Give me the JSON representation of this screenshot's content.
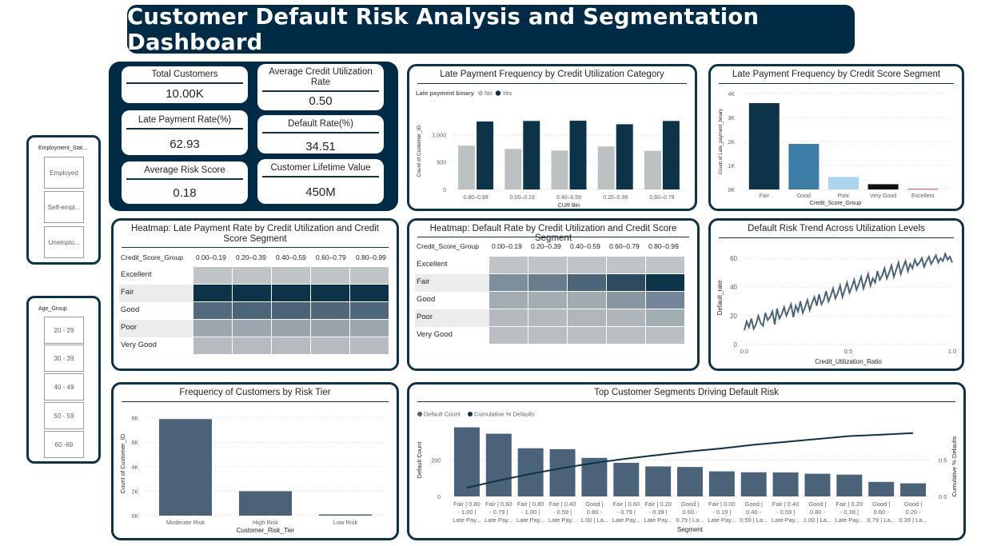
{
  "title": "Customer Default Risk Analysis and Segmentation Dashboard",
  "kpis": [
    {
      "label": "Total Customers",
      "value": "10.00K"
    },
    {
      "label": "Average Credit Utilization Rate",
      "value": "0.50"
    },
    {
      "label": "Late Payment Rate(%)",
      "value": "62.93"
    },
    {
      "label": "Default Rate(%)",
      "value": "34.51"
    },
    {
      "label": "Average Risk Score",
      "value": "0.18"
    },
    {
      "label": "Customer Lifetime Value",
      "value": "450M"
    }
  ],
  "slicers": {
    "employment": {
      "title": "Employment_Stat...",
      "items": [
        "Employed",
        "Self-empl...",
        "Unemplo..."
      ]
    },
    "age": {
      "title": "Age_Group",
      "items": [
        "20 - 29",
        "30 - 39",
        "40 - 49",
        "50 - 59",
        "60 -69"
      ]
    }
  },
  "colors": {
    "dark": "#0d3348",
    "slate": "#4b6378",
    "grey": "#c0c5c8",
    "banner": "#002b46"
  },
  "chart_data": [
    {
      "id": "late_by_cur",
      "type": "bar",
      "title": "Late Payment Frequency by Credit Utilization Category",
      "legend_title": "Late payment binary",
      "xlabel": "CUR Bin",
      "ylabel": "Count of Customer_ID",
      "categories": [
        "0.80–0.99",
        "0.00–0.19",
        "0.40–0.59",
        "0.20–0.39",
        "0.60–0.79"
      ],
      "series": [
        {
          "name": "No",
          "color": "#bcc1c4",
          "values": [
            800,
            740,
            710,
            785,
            705
          ]
        },
        {
          "name": "Yes",
          "color": "#0d3348",
          "values": [
            1240,
            1250,
            1255,
            1190,
            1250
          ]
        }
      ],
      "yticks": [
        "0",
        "500",
        "1,000"
      ],
      "ylim": [
        0,
        1400
      ]
    },
    {
      "id": "late_by_score",
      "type": "bar",
      "title": "Late Payment Frequency by Credit Score Segment",
      "xlabel": "Credit_Score_Group",
      "ylabel": "Count of Late_payment_binary",
      "categories": [
        "Fair",
        "Good",
        "Poor",
        "Very Good",
        "Excellent"
      ],
      "values": [
        3600,
        1900,
        520,
        220,
        30
      ],
      "bar_colors": [
        "#0d3348",
        "#3d7ea6",
        "#aad4f0",
        "#111111",
        "#e05050"
      ],
      "yticks": [
        "0K",
        "1K",
        "2K",
        "3K",
        "4K"
      ],
      "ylim": [
        0,
        4000
      ]
    },
    {
      "id": "heat_late",
      "type": "heatmap",
      "title": "Heatmap: Late Payment Rate by Credit Utilization and Credit Score Segment",
      "row_header": "Credit_Score_Group",
      "columns": [
        "0.00–0.19",
        "0.20–0.39",
        "0.40–0.59",
        "0.60–0.79",
        "0.80–0.99"
      ],
      "rows": [
        "Excellent",
        "Fair",
        "Good",
        "Poor",
        "Very Good"
      ],
      "cells": [
        [
          "#bfc4c7",
          "#bfc4c7",
          "#bfc4c7",
          "#bfc4c7",
          "#bfc4c7"
        ],
        [
          "#0d3348",
          "#0d3348",
          "#0d3348",
          "#0d3348",
          "#0d3348"
        ],
        [
          "#526a7e",
          "#4d6579",
          "#4b6378",
          "#4f6779",
          "#4f677a"
        ],
        [
          "#9ca6ae",
          "#9ca6ae",
          "#9aa4ac",
          "#9aa4ac",
          "#9ca6ae"
        ],
        [
          "#b5bbc0",
          "#b5bbc0",
          "#b5bbc0",
          "#b5bbc0",
          "#b5bbc0"
        ]
      ]
    },
    {
      "id": "heat_default",
      "type": "heatmap",
      "title": "Heatmap: Default Rate by Credit Utilization and Credit Score Segment",
      "row_header": "Credit_Score_Group",
      "columns": [
        "0.00–0.19",
        "0.20–0.39",
        "0.40–0.59",
        "0.60–0.79",
        "0.80–0.99"
      ],
      "rows": [
        "Excellent",
        "Fair",
        "Good",
        "Poor",
        "Very Good"
      ],
      "cells": [
        [
          "#bfc4c7",
          "#bfc4c7",
          "#bfc4c7",
          "#bfc4c7",
          "#bfc4c7"
        ],
        [
          "#7d8e9c",
          "#6a7d8d",
          "#4d6579",
          "#2d4a60",
          "#0d3348"
        ],
        [
          "#a2acb3",
          "#a2acb3",
          "#a0aab1",
          "#8795a2",
          "#74879a"
        ],
        [
          "#b3b9be",
          "#b3b9be",
          "#b0b7bc",
          "#b0b7bc",
          "#a3adb4"
        ],
        [
          "#b9bec2",
          "#b9bec2",
          "#b9bec2",
          "#b9bec2",
          "#b9bec2"
        ]
      ]
    },
    {
      "id": "trend",
      "type": "line",
      "title": "Default Risk Trend Across Utilization Levels",
      "xlabel": "Credit_Utilization_Ratio",
      "ylabel": "Default_rate",
      "xticks": [
        "0.0",
        "0.5",
        "1.0"
      ],
      "yticks": [
        "0",
        "20",
        "40",
        "60"
      ],
      "xlim": [
        0,
        1
      ],
      "ylim": [
        0,
        65
      ],
      "y": [
        10,
        16,
        12,
        18,
        11,
        14,
        20,
        15,
        13,
        22,
        17,
        19,
        23,
        14,
        25,
        18,
        21,
        26,
        20,
        24,
        28,
        19,
        27,
        23,
        30,
        22,
        26,
        31,
        24,
        29,
        33,
        27,
        35,
        28,
        31,
        37,
        30,
        34,
        39,
        32,
        36,
        41,
        33,
        38,
        43,
        36,
        40,
        45,
        38,
        42,
        47,
        39,
        44,
        49,
        41,
        46,
        43,
        51,
        45,
        48,
        53,
        46,
        50,
        55,
        47,
        52,
        57,
        49,
        54,
        58,
        51,
        56,
        53,
        59,
        55,
        57,
        60,
        54,
        58,
        61,
        56,
        59,
        62,
        57,
        60,
        58,
        63,
        59,
        61,
        57
      ]
    },
    {
      "id": "risk_tier",
      "type": "bar",
      "title": "Frequency of Customers by Risk Tier",
      "xlabel": "Customer_Risk_Tier",
      "ylabel": "Count of Customer_ID",
      "categories": [
        "Moderate Risk",
        "High Risk",
        "Low Risk"
      ],
      "values": [
        7900,
        2000,
        100
      ],
      "yticks": [
        "0K",
        "2K",
        "4K",
        "6K",
        "8K"
      ],
      "ylim": [
        0,
        8500
      ]
    },
    {
      "id": "pareto",
      "type": "bar",
      "title": "Top Customer Segments Driving Default Risk",
      "xlabel": "Segment",
      "ylabel": "Default Count",
      "y2label": "Cumulative % Defaults",
      "legend": [
        "Default Count",
        "Cumulative % Defaults"
      ],
      "categories": [
        [
          "Fair | 0.80",
          "- 1.00 |",
          "Late Pay..."
        ],
        [
          "Fair | 0.60",
          "- 0.79 |",
          "Late Pay..."
        ],
        [
          "Fair | 0.80",
          "- 1.00 |",
          "Late Pay..."
        ],
        [
          "Fair | 0.40",
          "- 0.59 |",
          "Late Pay..."
        ],
        [
          "Good |",
          "0.80 -",
          "1.00 | La..."
        ],
        [
          "Fair | 0.60",
          "- 0.79 |",
          "Late Pay..."
        ],
        [
          "Fair | 0.20",
          "- 0.39 |",
          "Late Pay..."
        ],
        [
          "Good |",
          "0.60 -",
          "0.79 | La..."
        ],
        [
          "Fair | 0.00",
          "- 0.19 |",
          "Late Pay..."
        ],
        [
          "Good |",
          "0.40 -",
          "0.59 | La..."
        ],
        [
          "Fair | 0.40",
          "- 0.59 |",
          "Late Pay..."
        ],
        [
          "Good |",
          "0.80 -",
          "1.00 | La..."
        ],
        [
          "Fair | 0.20",
          "- 0.39 |",
          "Late Pay..."
        ],
        [
          "Good |",
          "0.60 -",
          "0.79 | La..."
        ],
        [
          "Good |",
          "0.20 -",
          "0.39 | La..."
        ]
      ],
      "values": [
        380,
        345,
        265,
        260,
        212,
        185,
        165,
        162,
        138,
        133,
        132,
        125,
        120,
        80,
        72
      ],
      "cumulative": [
        0.12,
        0.22,
        0.31,
        0.39,
        0.46,
        0.52,
        0.57,
        0.62,
        0.66,
        0.71,
        0.75,
        0.79,
        0.83,
        0.85,
        0.87
      ],
      "yticks": [
        "0",
        "200"
      ],
      "y2ticks": [
        "0.0",
        "0.5"
      ],
      "ylim": [
        0,
        400
      ],
      "y2lim": [
        0,
        1
      ]
    }
  ]
}
